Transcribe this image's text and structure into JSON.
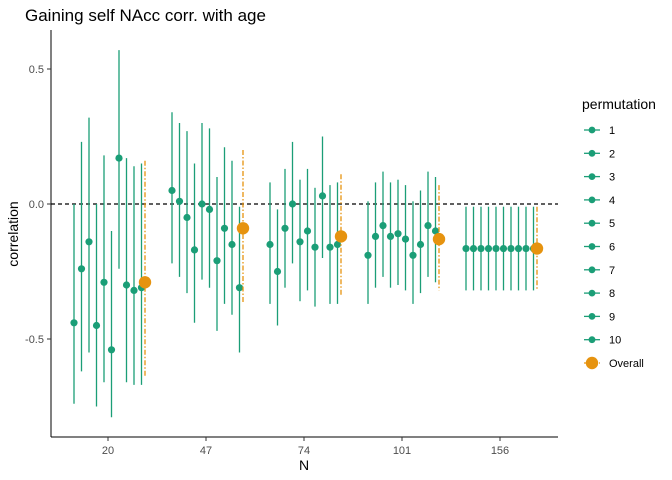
{
  "chart_data": {
    "type": "scatter",
    "title": "Gaining self NAcc corr. with age",
    "xlabel": "N",
    "ylabel": "correlation",
    "categories": [
      "20",
      "47",
      "74",
      "101",
      "156"
    ],
    "ylim": [
      -0.85,
      0.64
    ],
    "yticks": [
      0.5,
      0.0,
      -0.5
    ],
    "ytick_labels": [
      "0.5",
      "0.0",
      "-0.5"
    ],
    "reference_line": 0,
    "legend": {
      "title": "permutation",
      "placement": "right",
      "entries": [
        "1",
        "2",
        "3",
        "4",
        "5",
        "6",
        "7",
        "8",
        "9",
        "10",
        "Overall"
      ]
    },
    "colors": {
      "permutation": "#1b9e77",
      "overall": "#e6930f",
      "reference": "#000000"
    },
    "groups": [
      {
        "n": "20",
        "permutations": [
          {
            "permutation": "1",
            "r": -0.44,
            "lo": -0.74,
            "hi": 0.0
          },
          {
            "permutation": "2",
            "r": -0.24,
            "lo": -0.62,
            "hi": 0.23
          },
          {
            "permutation": "3",
            "r": -0.14,
            "lo": -0.55,
            "hi": 0.32
          },
          {
            "permutation": "4",
            "r": -0.45,
            "lo": -0.75,
            "hi": 0.0
          },
          {
            "permutation": "5",
            "r": -0.29,
            "lo": -0.66,
            "hi": 0.18
          },
          {
            "permutation": "6",
            "r": -0.54,
            "lo": -0.79,
            "hi": -0.1
          },
          {
            "permutation": "7",
            "r": 0.17,
            "lo": -0.24,
            "hi": 0.57
          },
          {
            "permutation": "8",
            "r": -0.3,
            "lo": -0.66,
            "hi": 0.17
          },
          {
            "permutation": "9",
            "r": -0.32,
            "lo": -0.67,
            "hi": 0.14
          },
          {
            "permutation": "10",
            "r": -0.31,
            "lo": -0.67,
            "hi": 0.15
          }
        ],
        "overall": {
          "r": -0.29,
          "lo": -0.64,
          "hi": 0.16
        }
      },
      {
        "n": "47",
        "permutations": [
          {
            "permutation": "1",
            "r": 0.05,
            "lo": -0.22,
            "hi": 0.34
          },
          {
            "permutation": "2",
            "r": 0.01,
            "lo": -0.27,
            "hi": 0.3
          },
          {
            "permutation": "3",
            "r": -0.05,
            "lo": -0.33,
            "hi": 0.27
          },
          {
            "permutation": "4",
            "r": -0.17,
            "lo": -0.44,
            "hi": 0.15
          },
          {
            "permutation": "5",
            "r": 0.0,
            "lo": -0.28,
            "hi": 0.3
          },
          {
            "permutation": "6",
            "r": -0.02,
            "lo": -0.31,
            "hi": 0.28
          },
          {
            "permutation": "7",
            "r": -0.21,
            "lo": -0.47,
            "hi": 0.1
          },
          {
            "permutation": "8",
            "r": -0.09,
            "lo": -0.37,
            "hi": 0.21
          },
          {
            "permutation": "9",
            "r": -0.15,
            "lo": -0.41,
            "hi": 0.16
          },
          {
            "permutation": "10",
            "r": -0.31,
            "lo": -0.55,
            "hi": -0.01
          }
        ],
        "overall": {
          "r": -0.09,
          "lo": -0.37,
          "hi": 0.2
        }
      },
      {
        "n": "74",
        "permutations": [
          {
            "permutation": "1",
            "r": -0.15,
            "lo": -0.37,
            "hi": 0.08
          },
          {
            "permutation": "2",
            "r": -0.25,
            "lo": -0.45,
            "hi": -0.02
          },
          {
            "permutation": "3",
            "r": -0.09,
            "lo": -0.31,
            "hi": 0.13
          },
          {
            "permutation": "4",
            "r": 0.0,
            "lo": -0.22,
            "hi": 0.23
          },
          {
            "permutation": "5",
            "r": -0.14,
            "lo": -0.36,
            "hi": 0.09
          },
          {
            "permutation": "6",
            "r": -0.1,
            "lo": -0.32,
            "hi": 0.13
          },
          {
            "permutation": "7",
            "r": -0.16,
            "lo": -0.38,
            "hi": 0.06
          },
          {
            "permutation": "8",
            "r": 0.03,
            "lo": -0.2,
            "hi": 0.25
          },
          {
            "permutation": "9",
            "r": -0.16,
            "lo": -0.37,
            "hi": 0.07
          },
          {
            "permutation": "10",
            "r": -0.15,
            "lo": -0.37,
            "hi": 0.08
          }
        ],
        "overall": {
          "r": -0.12,
          "lo": -0.34,
          "hi": 0.11
        }
      },
      {
        "n": "101",
        "permutations": [
          {
            "permutation": "1",
            "r": -0.19,
            "lo": -0.37,
            "hi": 0.01
          },
          {
            "permutation": "2",
            "r": -0.12,
            "lo": -0.31,
            "hi": 0.08
          },
          {
            "permutation": "3",
            "r": -0.08,
            "lo": -0.27,
            "hi": 0.12
          },
          {
            "permutation": "4",
            "r": -0.12,
            "lo": -0.31,
            "hi": 0.08
          },
          {
            "permutation": "5",
            "r": -0.11,
            "lo": -0.3,
            "hi": 0.09
          },
          {
            "permutation": "6",
            "r": -0.13,
            "lo": -0.32,
            "hi": 0.07
          },
          {
            "permutation": "7",
            "r": -0.19,
            "lo": -0.37,
            "hi": 0.01
          },
          {
            "permutation": "8",
            "r": -0.15,
            "lo": -0.33,
            "hi": 0.05
          },
          {
            "permutation": "9",
            "r": -0.08,
            "lo": -0.27,
            "hi": 0.12
          },
          {
            "permutation": "10",
            "r": -0.1,
            "lo": -0.29,
            "hi": 0.1
          }
        ],
        "overall": {
          "r": -0.13,
          "lo": -0.32,
          "hi": 0.07
        }
      },
      {
        "n": "156",
        "permutations": [
          {
            "permutation": "1",
            "r": -0.165,
            "lo": -0.32,
            "hi": -0.01
          },
          {
            "permutation": "2",
            "r": -0.165,
            "lo": -0.32,
            "hi": -0.01
          },
          {
            "permutation": "3",
            "r": -0.165,
            "lo": -0.32,
            "hi": -0.01
          },
          {
            "permutation": "4",
            "r": -0.165,
            "lo": -0.32,
            "hi": -0.01
          },
          {
            "permutation": "5",
            "r": -0.165,
            "lo": -0.32,
            "hi": -0.01
          },
          {
            "permutation": "6",
            "r": -0.165,
            "lo": -0.32,
            "hi": -0.01
          },
          {
            "permutation": "7",
            "r": -0.165,
            "lo": -0.32,
            "hi": -0.01
          },
          {
            "permutation": "8",
            "r": -0.165,
            "lo": -0.32,
            "hi": -0.01
          },
          {
            "permutation": "9",
            "r": -0.165,
            "lo": -0.32,
            "hi": -0.01
          },
          {
            "permutation": "10",
            "r": -0.165,
            "lo": -0.32,
            "hi": -0.01
          }
        ],
        "overall": {
          "r": -0.165,
          "lo": -0.32,
          "hi": -0.01
        }
      }
    ]
  }
}
